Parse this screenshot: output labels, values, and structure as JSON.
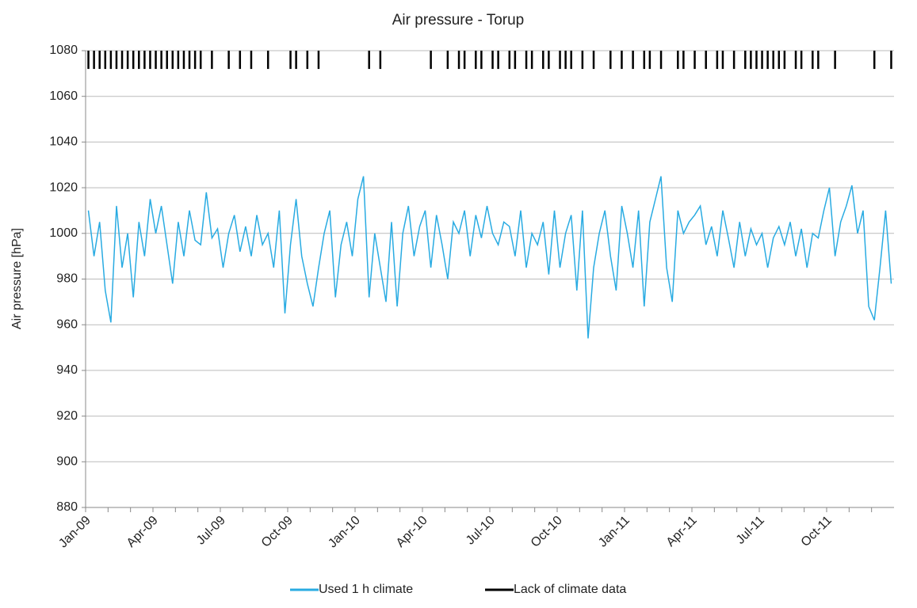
{
  "chart_data": {
    "type": "line",
    "title": "Air pressure - Torup",
    "y_label": "Air pressure [hPa]",
    "categories": [
      "Jan-09",
      null,
      null,
      "Apr-09",
      null,
      null,
      "Jul-09",
      null,
      null,
      "Oct-09",
      null,
      null,
      "Jan-10",
      null,
      null,
      "Apr-10",
      null,
      null,
      "Jul-10",
      null,
      null,
      "Oct-10",
      null,
      null,
      "Jan-11",
      null,
      null,
      "Apr-11",
      null,
      null,
      "Jul-11",
      null,
      null,
      "Oct-11",
      null,
      null
    ],
    "ylim": [
      880,
      1080
    ],
    "yticks": [
      880,
      900,
      920,
      940,
      960,
      980,
      1000,
      1020,
      1040,
      1060,
      1080
    ],
    "grid": true,
    "legend": "bottom",
    "series": [
      {
        "name": "Used 1 h climate",
        "color": "#29abe2",
        "values": [
          [
            1010,
            990,
            1005,
            975
          ],
          [
            961,
            1012,
            985,
            1000
          ],
          [
            972,
            1005,
            990,
            1015
          ],
          [
            1000,
            1012,
            995,
            978
          ],
          [
            1005,
            990,
            1010,
            997
          ],
          [
            995,
            1018,
            998,
            1002
          ],
          [
            985,
            1000,
            1008,
            992
          ],
          [
            1003,
            990,
            1008,
            995
          ],
          [
            1000,
            985,
            1010,
            965
          ],
          [
            995,
            1015,
            990,
            978
          ],
          [
            968,
            985,
            1000,
            1010
          ],
          [
            972,
            995,
            1005,
            990
          ],
          [
            1015,
            1025,
            972,
            1000
          ],
          [
            985,
            970,
            1005,
            968
          ],
          [
            1000,
            1012,
            990,
            1003
          ],
          [
            1010,
            985,
            1008,
            995
          ],
          [
            980,
            1005,
            1000,
            1010
          ],
          [
            990,
            1008,
            998,
            1012
          ],
          [
            1000,
            995,
            1005,
            1003
          ],
          [
            990,
            1010,
            985,
            1000
          ],
          [
            995,
            1005,
            982,
            1010
          ],
          [
            985,
            1000,
            1008,
            975
          ],
          [
            1010,
            954,
            985,
            1000
          ],
          [
            1010,
            990,
            975,
            1012
          ],
          [
            1000,
            985,
            1010,
            968
          ],
          [
            1005,
            1015,
            1025,
            985
          ],
          [
            970,
            1010,
            1000,
            1005
          ],
          [
            1008,
            1012,
            995,
            1003
          ],
          [
            990,
            1010,
            998,
            985
          ],
          [
            1005,
            990,
            1002,
            995
          ],
          [
            1000,
            985,
            998,
            1003
          ],
          [
            995,
            1005,
            990,
            1002
          ],
          [
            985,
            1000,
            998,
            1010
          ],
          [
            1020,
            990,
            1005,
            1012
          ],
          [
            1021,
            1000,
            1010,
            968
          ],
          [
            962,
            985,
            1010,
            978
          ]
        ]
      },
      {
        "name": "Lack of climate data",
        "color": "#000000",
        "values": [
          [
            1072,
            1072,
            1072,
            1072
          ],
          [
            1072,
            1072,
            1072,
            1072
          ],
          [
            1072,
            1072,
            1072,
            1072
          ],
          [
            1072,
            1072,
            1072,
            1072
          ],
          [
            1072,
            1072,
            1072,
            1072
          ],
          [
            1072,
            null,
            1072,
            null
          ],
          [
            null,
            1072,
            null,
            1072
          ],
          [
            null,
            1072,
            null,
            null
          ],
          [
            1072,
            null,
            null,
            null
          ],
          [
            1072,
            1072,
            null,
            1072
          ],
          [
            null,
            1072,
            null,
            null
          ],
          [
            null,
            null,
            null,
            null
          ],
          [
            null,
            null,
            1072,
            null
          ],
          [
            1072,
            null,
            null,
            null
          ],
          [
            null,
            null,
            null,
            null
          ],
          [
            null,
            1072,
            null,
            null
          ],
          [
            1072,
            null,
            1072,
            1072
          ],
          [
            null,
            1072,
            1072,
            null
          ],
          [
            1072,
            1072,
            null,
            1072
          ],
          [
            1072,
            null,
            1072,
            1072
          ],
          [
            null,
            1072,
            1072,
            null
          ],
          [
            1072,
            1072,
            1072,
            null
          ],
          [
            1072,
            null,
            1072,
            null
          ],
          [
            null,
            1072,
            null,
            1072
          ],
          [
            null,
            1072,
            null,
            1072
          ],
          [
            1072,
            null,
            1072,
            null
          ],
          [
            null,
            1072,
            1072,
            null
          ],
          [
            1072,
            null,
            1072,
            null
          ],
          [
            1072,
            1072,
            null,
            1072
          ],
          [
            null,
            1072,
            1072,
            1072
          ],
          [
            1072,
            1072,
            1072,
            1072
          ],
          [
            1072,
            null,
            1072,
            1072
          ],
          [
            null,
            1072,
            1072,
            null
          ],
          [
            null,
            1072,
            null,
            null
          ],
          [
            null,
            null,
            null,
            null
          ],
          [
            1072,
            null,
            null,
            1072
          ]
        ]
      }
    ]
  }
}
